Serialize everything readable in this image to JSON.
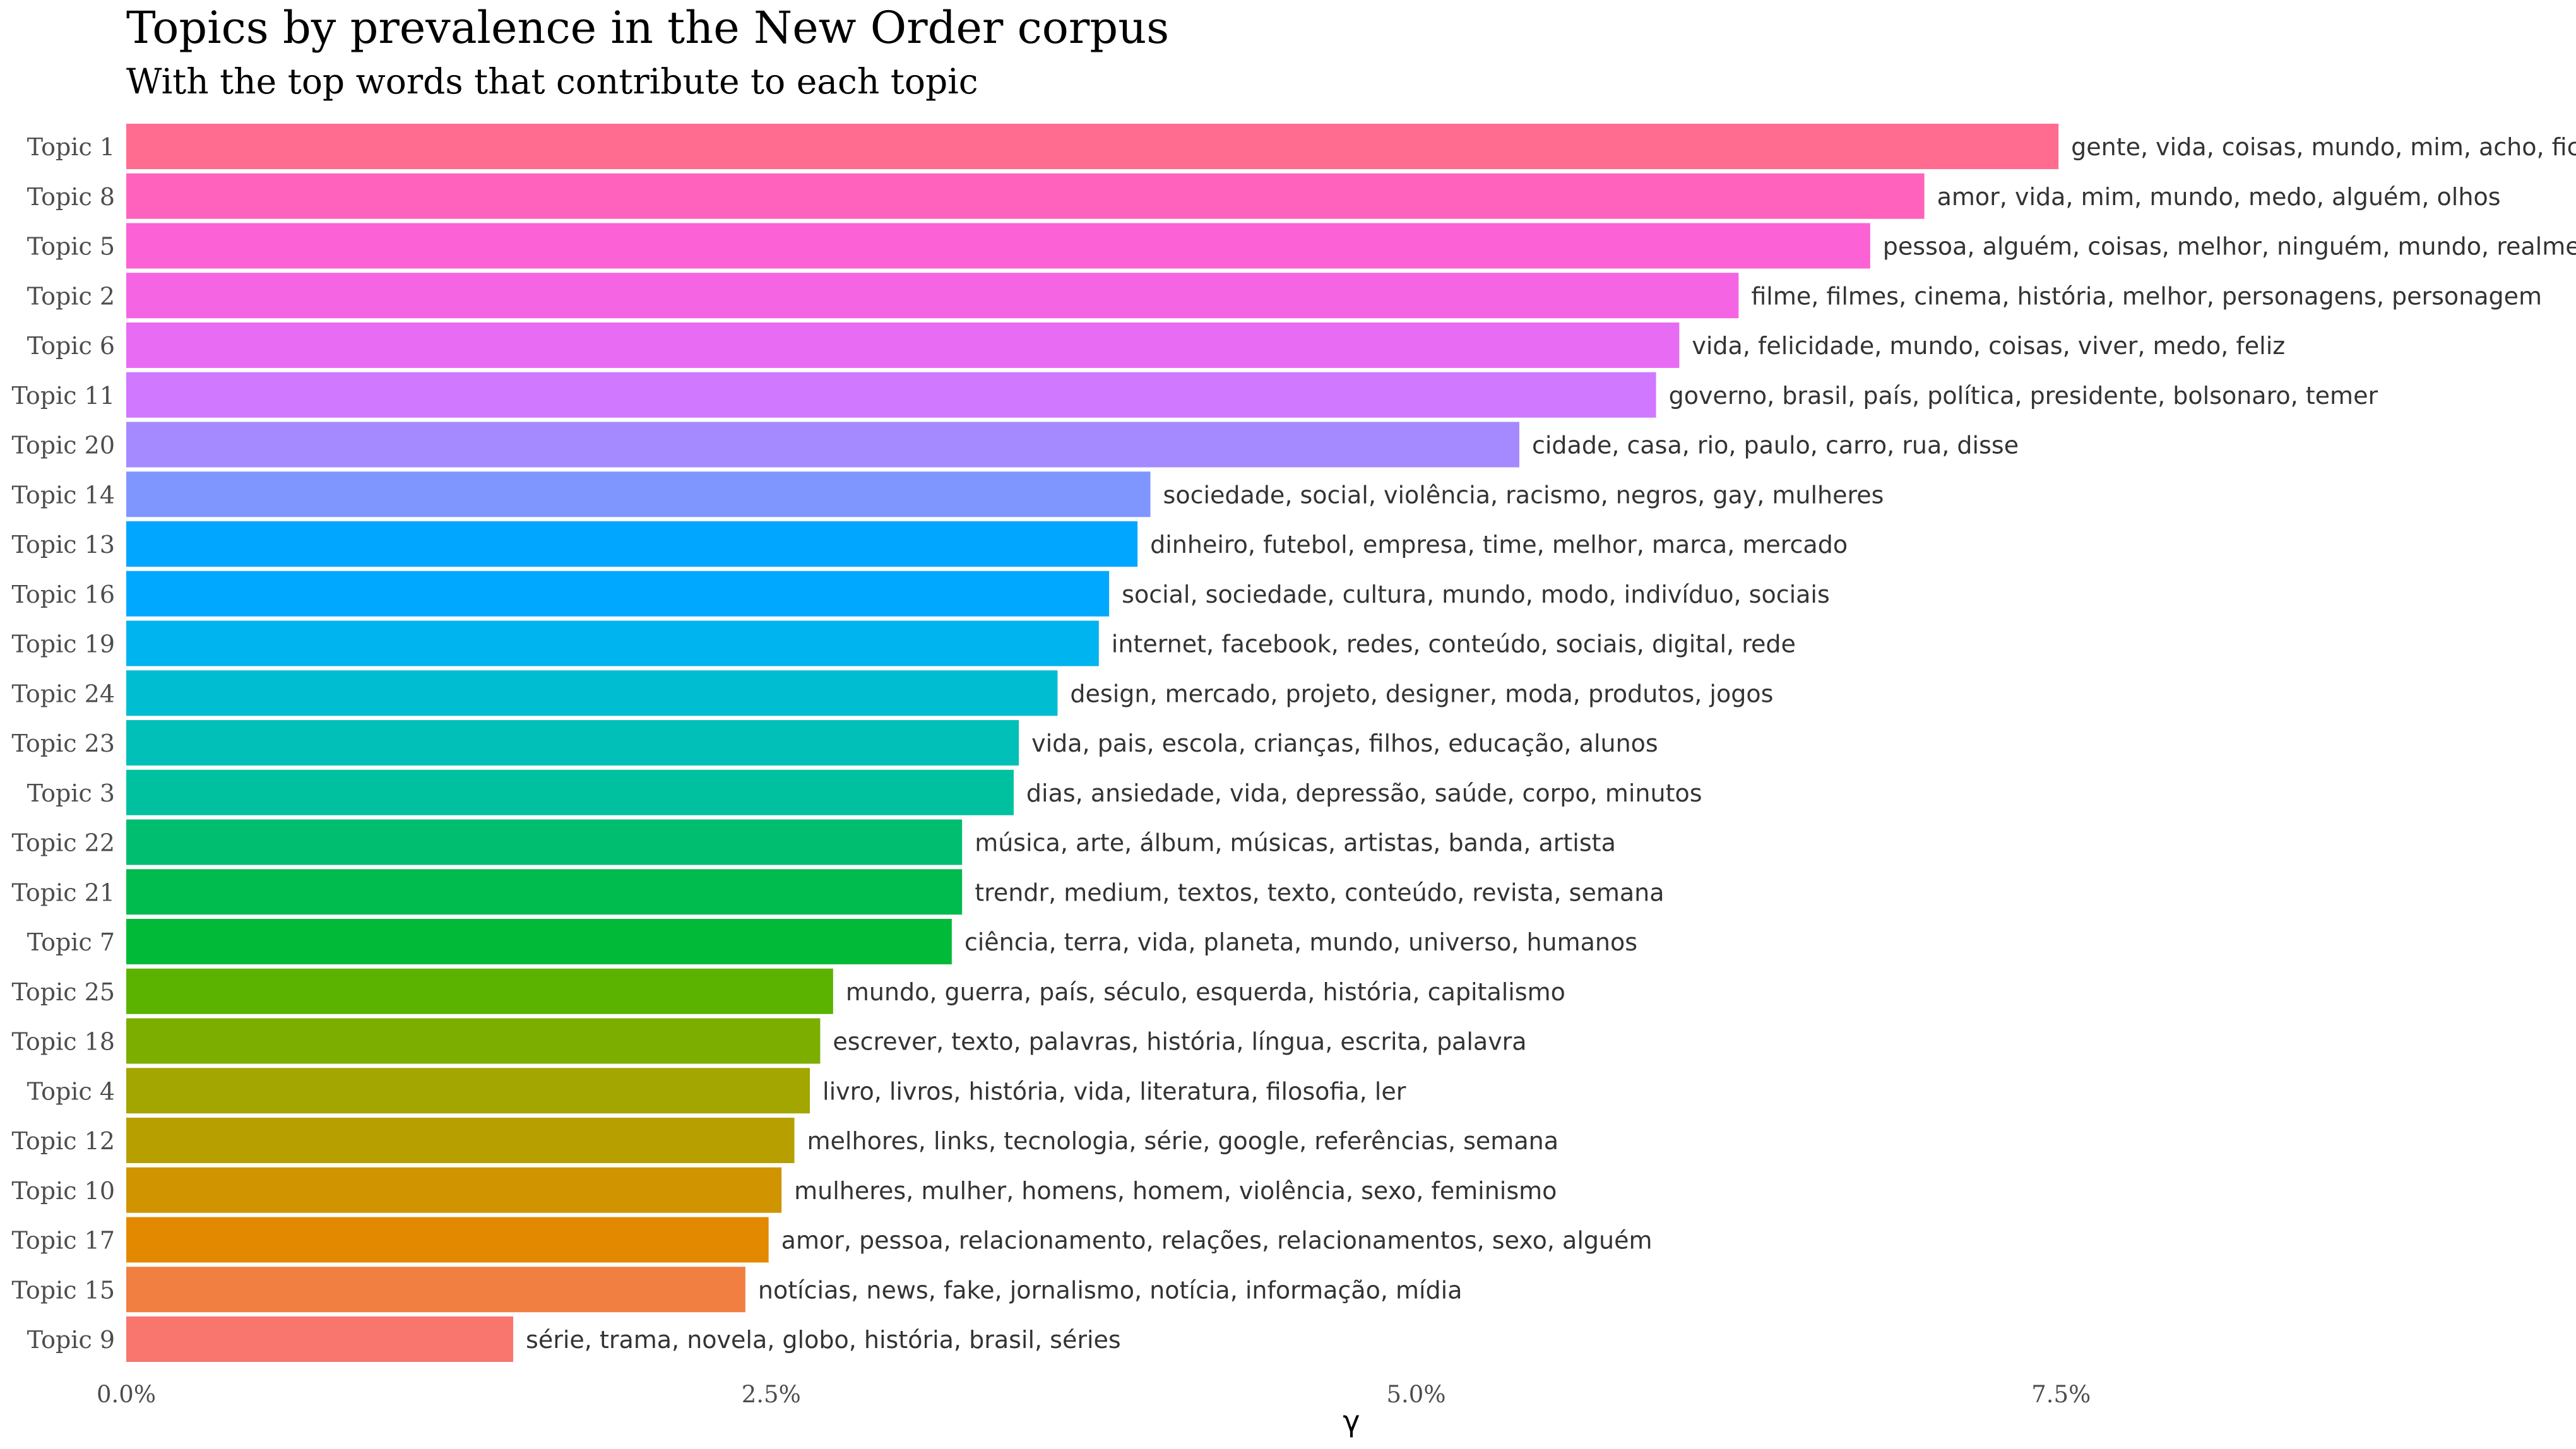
{
  "chart_data": {
    "type": "bar",
    "orientation": "horizontal",
    "title": "Topics by prevalence in the New Order corpus",
    "subtitle": "With the top words that contribute to each topic",
    "xlabel": "γ",
    "ylabel": "",
    "xlim": [
      0,
      0.1
    ],
    "x_ticks": [
      0,
      0.025,
      0.05,
      0.075
    ],
    "x_tick_labels": [
      "0.0%",
      "2.5%",
      "5.0%",
      "7.5%"
    ],
    "grid": false,
    "legend": "none",
    "categories": [
      "Topic 1",
      "Topic 8",
      "Topic 5",
      "Topic 2",
      "Topic 6",
      "Topic 11",
      "Topic 20",
      "Topic 14",
      "Topic 13",
      "Topic 16",
      "Topic 19",
      "Topic 24",
      "Topic 23",
      "Topic 3",
      "Topic 22",
      "Topic 21",
      "Topic 7",
      "Topic 25",
      "Topic 18",
      "Topic 4",
      "Topic 12",
      "Topic 10",
      "Topic 17",
      "Topic 15",
      "Topic 9"
    ],
    "values": [
      0.0749,
      0.0697,
      0.0676,
      0.0625,
      0.0602,
      0.0593,
      0.054,
      0.0397,
      0.0392,
      0.0381,
      0.0377,
      0.0361,
      0.0346,
      0.0344,
      0.0324,
      0.0324,
      0.032,
      0.0274,
      0.0269,
      0.0265,
      0.0259,
      0.0254,
      0.0249,
      0.024,
      0.015
    ],
    "labels": [
      "gente, vida, coisas, mundo, mim, acho, fic",
      "amor, vida, mim, mundo, medo, alguém, olhos",
      "pessoa, alguém, coisas, melhor, ninguém, mundo, realme",
      "filme, filmes, cinema, história, melhor, personagens, personagem",
      "vida, felicidade, mundo, coisas, viver, medo, feliz",
      "governo, brasil, país, política, presidente, bolsonaro, temer",
      "cidade, casa, rio, paulo, carro, rua, disse",
      "sociedade, social, violência, racismo, negros, gay, mulheres",
      "dinheiro, futebol, empresa, time, melhor, marca, mercado",
      "social, sociedade, cultura, mundo, modo, indivíduo, sociais",
      "internet, facebook, redes, conteúdo, sociais, digital, rede",
      "design, mercado, projeto, designer, moda, produtos, jogos",
      "vida, pais, escola, crianças, filhos, educação, alunos",
      "dias, ansiedade, vida, depressão, saúde, corpo, minutos",
      "música, arte, álbum, músicas, artistas, banda, artista",
      "trendr, medium, textos, texto, conteúdo, revista, semana",
      "ciência, terra, vida, planeta, mundo, universo, humanos",
      "mundo, guerra, país, século, esquerda, história, capitalismo",
      "escrever, texto, palavras, história, língua, escrita, palavra",
      "livro, livros, história, vida, literatura, filosofia, ler",
      "melhores, links, tecnologia, série, google, referências, semana",
      "mulheres, mulher, homens, homem, violência, sexo, feminismo",
      "amor, pessoa, relacionamento, relações, relacionamentos, sexo, alguém",
      "notícias, news, fake, jornalismo, notícia, informação, mídia",
      "série, trama, novela, globo, história, brasil, séries"
    ],
    "colors": [
      "#FF6C90",
      "#FF62BC",
      "#FC61D5",
      "#F564E3",
      "#E76BF3",
      "#D078FF",
      "#A58AFF",
      "#7F96FF",
      "#00A6FF",
      "#00A9FF",
      "#00B4EF",
      "#00BDD2",
      "#00C0B8",
      "#00C19F",
      "#00BE70",
      "#00BB4E",
      "#00BA38",
      "#5BB300",
      "#7CAE00",
      "#A3A500",
      "#B79F00",
      "#CF9400",
      "#E38900",
      "#F07F41",
      "#F8766D"
    ]
  }
}
